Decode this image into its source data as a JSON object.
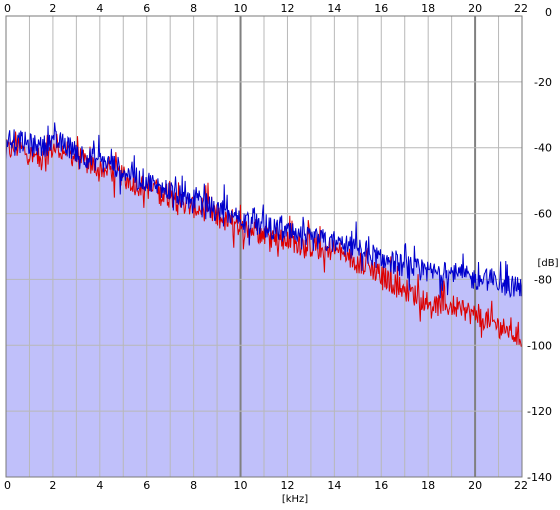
{
  "chart_data": {
    "type": "line",
    "title": "",
    "xlabel": "[kHz]",
    "ylabel": "[dB]",
    "xlim": [
      0,
      22
    ],
    "ylim": [
      -140,
      0
    ],
    "x_ticks": [
      0,
      2,
      4,
      6,
      8,
      10,
      12,
      14,
      16,
      18,
      20,
      22
    ],
    "x_tick_labels": [
      "0",
      "2",
      "4",
      "6",
      "8",
      "10",
      "12",
      "14",
      "16",
      "18",
      "20",
      "22"
    ],
    "y_ticks": [
      0,
      -20,
      -40,
      -60,
      -80,
      -100,
      -120,
      -140
    ],
    "y_tick_labels": [
      "0",
      "-20",
      "-40",
      "-60",
      "-80",
      "-100",
      "-120",
      "-140"
    ],
    "x_tick_labels_top": true,
    "x_tick_labels_bottom": true,
    "y_tick_labels_side": "right",
    "grid": true,
    "legend": "none",
    "colors": {
      "plot_background": "#ffffff",
      "fill": "#c0c0fa",
      "grid_minor": "#b8b8b8",
      "grid_major": "#808080",
      "frame": "#7a7a7a"
    },
    "series": [
      {
        "color": "#dd0000",
        "style": "noisy-line",
        "x": [
          0,
          0.5,
          1,
          1.5,
          2,
          2.5,
          3,
          3.5,
          4,
          4.5,
          5,
          5.5,
          6,
          6.5,
          7,
          7.5,
          8,
          8.5,
          9,
          9.5,
          10,
          10.5,
          11,
          11.5,
          12,
          12.5,
          13,
          13.5,
          14,
          14.5,
          15,
          15.5,
          16,
          16.5,
          17,
          17.5,
          18,
          18.5,
          19,
          19.5,
          20,
          20.5,
          21,
          21.5,
          22
        ],
        "y": [
          -41,
          -40,
          -42,
          -44,
          -40,
          -41,
          -43,
          -45,
          -46,
          -47,
          -49,
          -51,
          -52,
          -54,
          -55,
          -57,
          -58,
          -59,
          -61,
          -63,
          -65,
          -65,
          -66,
          -67,
          -68,
          -69,
          -70,
          -71,
          -71,
          -73,
          -75,
          -76,
          -79,
          -81,
          -83,
          -85,
          -87,
          -88,
          -88,
          -89,
          -91,
          -92,
          -94,
          -96,
          -98
        ]
      },
      {
        "color": "#0000cc",
        "style": "noisy-line",
        "x": [
          0,
          0.5,
          1,
          1.5,
          2,
          2.5,
          3,
          3.5,
          4,
          4.5,
          5,
          5.5,
          6,
          6.5,
          7,
          7.5,
          8,
          8.5,
          9,
          9.5,
          10,
          10.5,
          11,
          11.5,
          12,
          12.5,
          13,
          13.5,
          14,
          14.5,
          15,
          15.5,
          16,
          16.5,
          17,
          17.5,
          18,
          18.5,
          19,
          19.5,
          20,
          20.5,
          21,
          21.5,
          22
        ],
        "y": [
          -37,
          -38,
          -39,
          -40,
          -38,
          -39,
          -41,
          -43,
          -44,
          -45,
          -47,
          -49,
          -50,
          -52,
          -53,
          -55,
          -56,
          -57,
          -59,
          -60,
          -62,
          -63,
          -64,
          -65,
          -66,
          -67,
          -68,
          -68,
          -69,
          -70,
          -71,
          -72,
          -74,
          -75,
          -76,
          -77,
          -78,
          -78,
          -78,
          -79,
          -80,
          -80,
          -81,
          -82,
          -82
        ]
      }
    ]
  }
}
